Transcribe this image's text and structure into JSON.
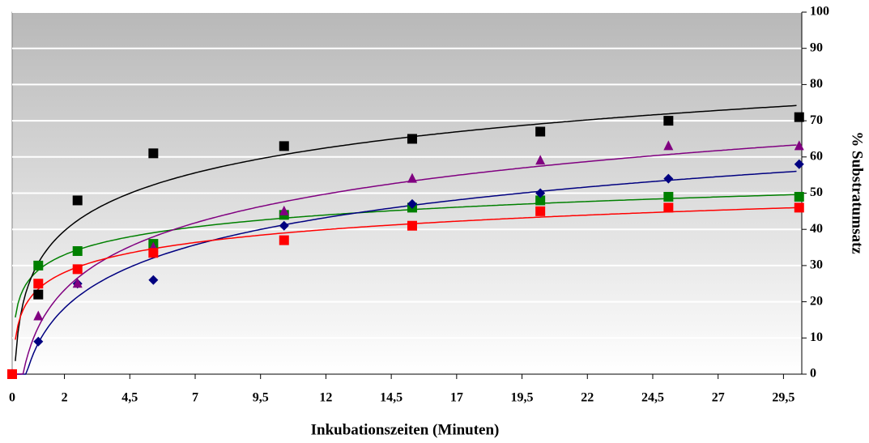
{
  "chart_data": {
    "type": "scatter",
    "x_label": "Inkubationszeiten (Minuten)",
    "y_label": "% Substratumsatz",
    "x": [
      0,
      1.0,
      2.5,
      5.4,
      10.4,
      15.3,
      20.2,
      25.1,
      30.1
    ],
    "series": [
      {
        "color": "#008000",
        "marker": "square",
        "values": [
          0,
          30,
          34,
          36,
          44,
          46,
          48,
          49,
          49
        ]
      },
      {
        "color": "#000080",
        "marker": "diamond",
        "values": [
          0,
          9,
          25,
          26,
          41,
          47,
          50,
          54,
          58
        ]
      },
      {
        "color": "#800080",
        "marker": "triangle",
        "values": [
          0,
          16,
          25,
          35,
          45,
          54,
          59,
          63,
          63
        ]
      },
      {
        "color": "#000000",
        "marker": "square",
        "values": [
          0,
          22,
          48,
          61,
          63,
          65,
          67,
          70,
          71
        ]
      },
      {
        "color": "#ff0000",
        "marker": "square",
        "values": [
          0,
          25,
          29,
          33.5,
          37,
          41,
          45,
          46,
          46
        ]
      }
    ],
    "trendline": "logarithmic",
    "xlim": [
      0,
      30.2
    ],
    "xticks": [
      0,
      2,
      {
        "value": 4.5,
        "label": "4,5"
      },
      7,
      {
        "value": 9.5,
        "label": "9,5"
      },
      12,
      {
        "value": 14.5,
        "label": "14,5"
      },
      17,
      {
        "value": 19.5,
        "label": "19,5"
      },
      22,
      {
        "value": 24.5,
        "label": "24,5"
      },
      27,
      {
        "value": 29.5,
        "label": "29,5"
      }
    ],
    "ylim": [
      0,
      100
    ],
    "yticks": [
      0,
      10,
      20,
      30,
      40,
      50,
      60,
      70,
      80,
      90,
      100
    ],
    "grid": true
  }
}
